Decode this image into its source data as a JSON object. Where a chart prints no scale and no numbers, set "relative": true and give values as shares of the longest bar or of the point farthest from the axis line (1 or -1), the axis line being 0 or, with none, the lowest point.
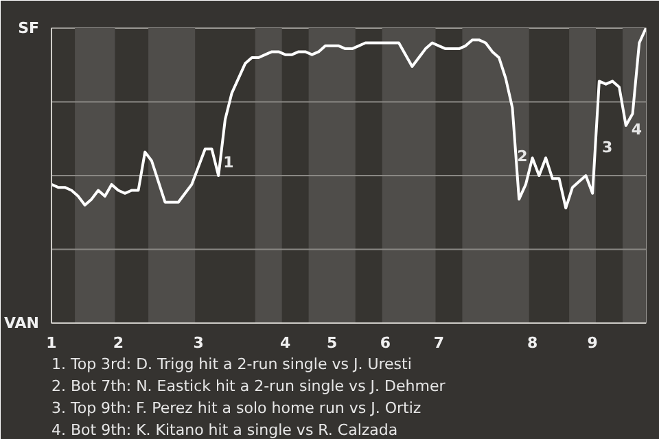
{
  "chart_data": {
    "type": "line",
    "relative": true,
    "categories": [
      "1",
      null,
      null,
      null,
      null,
      null,
      null,
      null,
      null,
      null,
      "2",
      null,
      null,
      null,
      null,
      null,
      null,
      null,
      null,
      null,
      null,
      null,
      "3",
      null,
      null,
      null,
      null,
      null,
      null,
      null,
      null,
      null,
      null,
      null,
      null,
      "4",
      null,
      null,
      null,
      null,
      null,
      null,
      "5",
      null,
      null,
      null,
      null,
      null,
      null,
      null,
      "6",
      null,
      null,
      null,
      null,
      null,
      null,
      null,
      "7",
      null,
      null,
      null,
      null,
      null,
      null,
      null,
      null,
      null,
      null,
      null,
      null,
      null,
      "8",
      null,
      null,
      null,
      null,
      null,
      null,
      null,
      null,
      "9",
      null,
      null,
      null,
      null,
      null,
      null,
      null,
      null
    ],
    "series": [
      {
        "color": "#ffffff",
        "values": [
          0.47,
          0.46,
          0.46,
          0.45,
          0.43,
          0.4,
          0.42,
          0.45,
          0.43,
          0.47,
          0.45,
          0.44,
          0.45,
          0.45,
          0.58,
          0.55,
          0.48,
          0.41,
          0.41,
          0.41,
          0.44,
          0.47,
          0.53,
          0.59,
          0.59,
          0.5,
          0.69,
          0.78,
          0.83,
          0.88,
          0.9,
          0.9,
          0.91,
          0.92,
          0.92,
          0.91,
          0.91,
          0.92,
          0.92,
          0.91,
          0.92,
          0.94,
          0.94,
          0.94,
          0.93,
          0.93,
          0.94,
          0.95,
          0.95,
          0.95,
          0.95,
          0.95,
          0.95,
          0.91,
          0.87,
          0.9,
          0.93,
          0.95,
          0.94,
          0.93,
          0.93,
          0.93,
          0.94,
          0.96,
          0.96,
          0.95,
          0.92,
          0.9,
          0.83,
          0.73,
          0.42,
          0.47,
          0.56,
          0.5,
          0.56,
          0.49,
          0.49,
          0.39,
          0.46,
          0.48,
          0.5,
          0.44,
          0.82,
          0.81,
          0.82,
          0.8,
          0.67,
          0.71,
          0.95,
          1.0
        ]
      }
    ],
    "ref_lines": [
      {
        "axis": "y",
        "value": 0.75,
        "color": "#8a8884"
      },
      {
        "axis": "y",
        "value": 0.5,
        "color": "#8a8884"
      },
      {
        "axis": "y",
        "value": 0.25,
        "color": "#8a8884"
      }
    ],
    "annotations": [
      "SF",
      "VAN",
      "1",
      "2",
      "3",
      "4",
      "1. Top 3rd: D. Trigg hit a 2-run single vs J. Uresti",
      "2. Bot 7th: N. Eastick hit a 2-run single vs J. Dehmer",
      "3. Top 9th: F. Perez hit a solo home run vs J. Ortiz",
      "4. Bot 9th: K. Kitano hit a single vs R. Calzada"
    ]
  }
}
